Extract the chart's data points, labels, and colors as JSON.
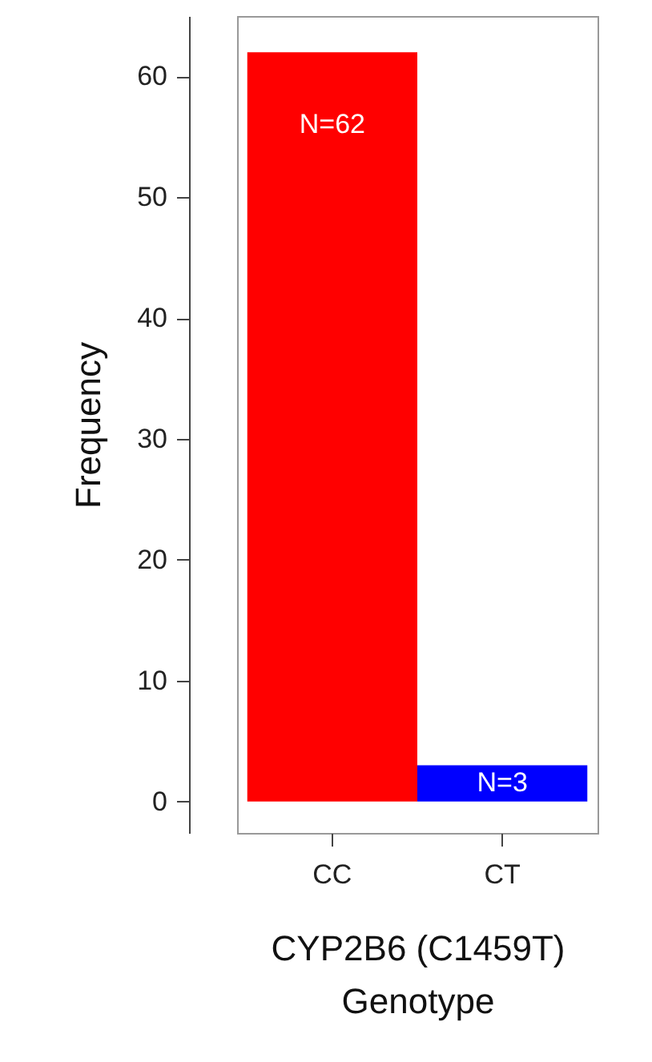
{
  "chart_data": {
    "type": "bar",
    "categories": [
      "CC",
      "CT"
    ],
    "values": [
      62,
      3
    ],
    "colors": [
      "#ff0000",
      "#0000ff"
    ],
    "value_labels": [
      "N=62",
      "N=3"
    ],
    "xlabel": "CYP2B6 (C1459T)\nGenotype",
    "ylabel": "Frequency",
    "ylim": [
      -2.6,
      65
    ],
    "yticks": [
      0,
      10,
      20,
      30,
      40,
      50,
      60
    ],
    "grid": false
  }
}
